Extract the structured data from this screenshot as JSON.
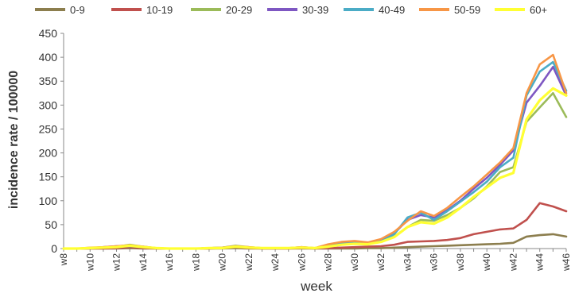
{
  "chart_data": {
    "type": "line",
    "xlabel": "week",
    "ylabel": "incidence rate / 100000",
    "ylim": [
      0,
      450
    ],
    "yticks": [
      0,
      50,
      100,
      150,
      200,
      250,
      300,
      350,
      400,
      450
    ],
    "grid": false,
    "legend_position": "top",
    "x": [
      "w8",
      "w9",
      "w10",
      "w11",
      "w12",
      "w13",
      "w14",
      "w15",
      "w16",
      "w17",
      "w18",
      "w19",
      "w20",
      "w21",
      "w22",
      "w23",
      "w24",
      "w25",
      "w26",
      "w27",
      "w28",
      "w29",
      "w30",
      "w31",
      "w32",
      "w33",
      "w34",
      "w35",
      "w36",
      "w37",
      "w38",
      "w39",
      "w40",
      "w41",
      "w42",
      "w43",
      "w44",
      "w45",
      "w46"
    ],
    "x_tick_labels": [
      "w8",
      "w10",
      "w12",
      "w14",
      "w16",
      "w18",
      "w20",
      "w22",
      "w24",
      "w26",
      "w28",
      "w30",
      "w32",
      "w34",
      "w36",
      "w38",
      "w40",
      "w42",
      "w44",
      "w46"
    ],
    "series": [
      {
        "name": "0-9",
        "color": "#8c7e4e",
        "values": [
          0,
          0,
          0,
          0,
          0,
          1,
          0,
          0,
          0,
          0,
          0,
          0,
          0,
          1,
          0,
          0,
          0,
          0,
          0,
          0,
          0,
          0,
          0,
          1,
          1,
          2,
          3,
          4,
          5,
          6,
          7,
          8,
          9,
          10,
          12,
          25,
          28,
          30,
          25
        ]
      },
      {
        "name": "10-19",
        "color": "#c0504d",
        "values": [
          0,
          0,
          0,
          0,
          1,
          3,
          1,
          0,
          0,
          0,
          0,
          0,
          1,
          3,
          1,
          0,
          0,
          0,
          1,
          0,
          1,
          2,
          3,
          4,
          5,
          8,
          14,
          15,
          16,
          18,
          22,
          30,
          35,
          40,
          42,
          60,
          95,
          88,
          78
        ]
      },
      {
        "name": "20-29",
        "color": "#9bbb59",
        "values": [
          0,
          0,
          1,
          2,
          4,
          8,
          4,
          1,
          0,
          0,
          0,
          1,
          2,
          6,
          3,
          1,
          1,
          1,
          2,
          1,
          5,
          8,
          12,
          10,
          14,
          25,
          45,
          60,
          58,
          70,
          85,
          105,
          130,
          160,
          170,
          265,
          295,
          325,
          275
        ]
      },
      {
        "name": "30-39",
        "color": "#7e57c2",
        "values": [
          0,
          0,
          1,
          3,
          5,
          6,
          3,
          1,
          0,
          0,
          0,
          1,
          2,
          5,
          2,
          1,
          1,
          1,
          3,
          1,
          8,
          12,
          14,
          12,
          18,
          32,
          60,
          70,
          65,
          80,
          100,
          125,
          148,
          175,
          205,
          305,
          340,
          380,
          320
        ]
      },
      {
        "name": "40-49",
        "color": "#4bacc6",
        "values": [
          0,
          0,
          1,
          2,
          4,
          5,
          3,
          1,
          0,
          0,
          0,
          1,
          2,
          4,
          2,
          1,
          1,
          1,
          2,
          1,
          6,
          10,
          12,
          10,
          15,
          30,
          65,
          75,
          60,
          78,
          98,
          118,
          140,
          170,
          190,
          320,
          370,
          390,
          330
        ]
      },
      {
        "name": "50-59",
        "color": "#f79646",
        "values": [
          0,
          0,
          2,
          3,
          5,
          7,
          4,
          1,
          0,
          0,
          0,
          1,
          2,
          5,
          3,
          1,
          1,
          1,
          3,
          1,
          9,
          14,
          16,
          13,
          20,
          35,
          58,
          78,
          68,
          85,
          108,
          130,
          155,
          180,
          210,
          325,
          385,
          405,
          325
        ]
      },
      {
        "name": "60+",
        "color": "#ffff33",
        "values": [
          0,
          0,
          1,
          2,
          3,
          6,
          3,
          1,
          0,
          0,
          0,
          1,
          1,
          4,
          2,
          1,
          1,
          1,
          2,
          1,
          4,
          8,
          10,
          9,
          14,
          24,
          45,
          55,
          52,
          65,
          85,
          108,
          128,
          148,
          158,
          270,
          310,
          335,
          320
        ]
      }
    ]
  }
}
